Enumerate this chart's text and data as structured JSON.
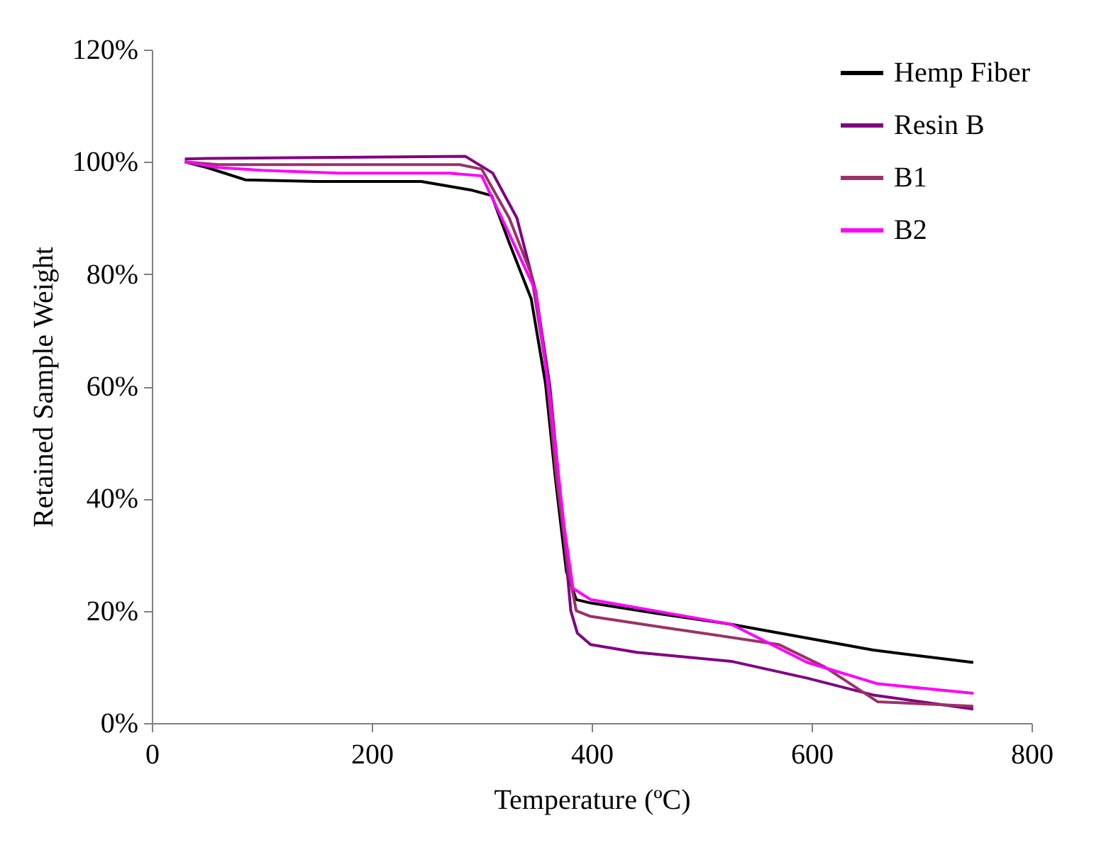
{
  "chart_data": {
    "type": "line",
    "xlabel": "Temperature (ºC)",
    "ylabel": "Retained Sample Weight",
    "xlim": [
      0,
      800
    ],
    "xticks": [
      0,
      200,
      400,
      600,
      800
    ],
    "ylim": [
      0,
      120
    ],
    "yticks": [
      {
        "value": 0,
        "label": "0%"
      },
      {
        "value": 20,
        "label": "20%"
      },
      {
        "value": 40,
        "label": "40%"
      },
      {
        "value": 60,
        "label": "60%"
      },
      {
        "value": 80,
        "label": "80%"
      },
      {
        "value": 100,
        "label": "100%"
      },
      {
        "value": 120,
        "label": "120%"
      }
    ],
    "grid": false,
    "legend": "top right",
    "marker": "none",
    "line_style": "solid",
    "series": [
      {
        "name": "Hemp Fiber",
        "color": "#000000",
        "x": [
          30,
          50,
          85,
          150,
          245,
          290,
          309,
          325,
          345,
          358,
          367,
          377,
          386,
          399,
          460,
          527,
          600,
          656,
          747
        ],
        "values": [
          100,
          99,
          96.8,
          96.5,
          96.5,
          95,
          94,
          85.6,
          75.6,
          60.5,
          43.6,
          27,
          22,
          21.4,
          19.5,
          17.6,
          15,
          13,
          10.8
        ]
      },
      {
        "name": "Resin B",
        "color": "#800080",
        "x": [
          30,
          50,
          165,
          285,
          310,
          332,
          349,
          362,
          370,
          381,
          387,
          399,
          441,
          527,
          596,
          656,
          747
        ],
        "values": [
          100.5,
          100.6,
          100.8,
          101,
          98,
          90,
          77,
          60,
          43.6,
          20,
          16,
          14,
          12.6,
          11,
          8,
          5,
          2.5
        ]
      },
      {
        "name": "B1",
        "color": "#993366",
        "x": [
          30,
          60,
          160,
          280,
          300,
          325,
          345,
          358,
          368,
          379,
          386,
          399,
          467,
          570,
          612,
          660,
          747
        ],
        "values": [
          100,
          99.5,
          99.5,
          99.5,
          98.7,
          90,
          80,
          64,
          43.6,
          27,
          20,
          19,
          17,
          14,
          10,
          3.8,
          3
        ]
      },
      {
        "name": "B2",
        "color": "#ff00ff",
        "x": [
          30,
          60,
          100,
          170,
          270,
          300,
          323,
          349,
          362,
          375,
          383,
          399,
          527,
          596,
          660,
          747
        ],
        "values": [
          100,
          99,
          98.5,
          98,
          98,
          97.5,
          88,
          77,
          58,
          35,
          24,
          22,
          17.6,
          10.8,
          7,
          5.3
        ]
      }
    ]
  }
}
